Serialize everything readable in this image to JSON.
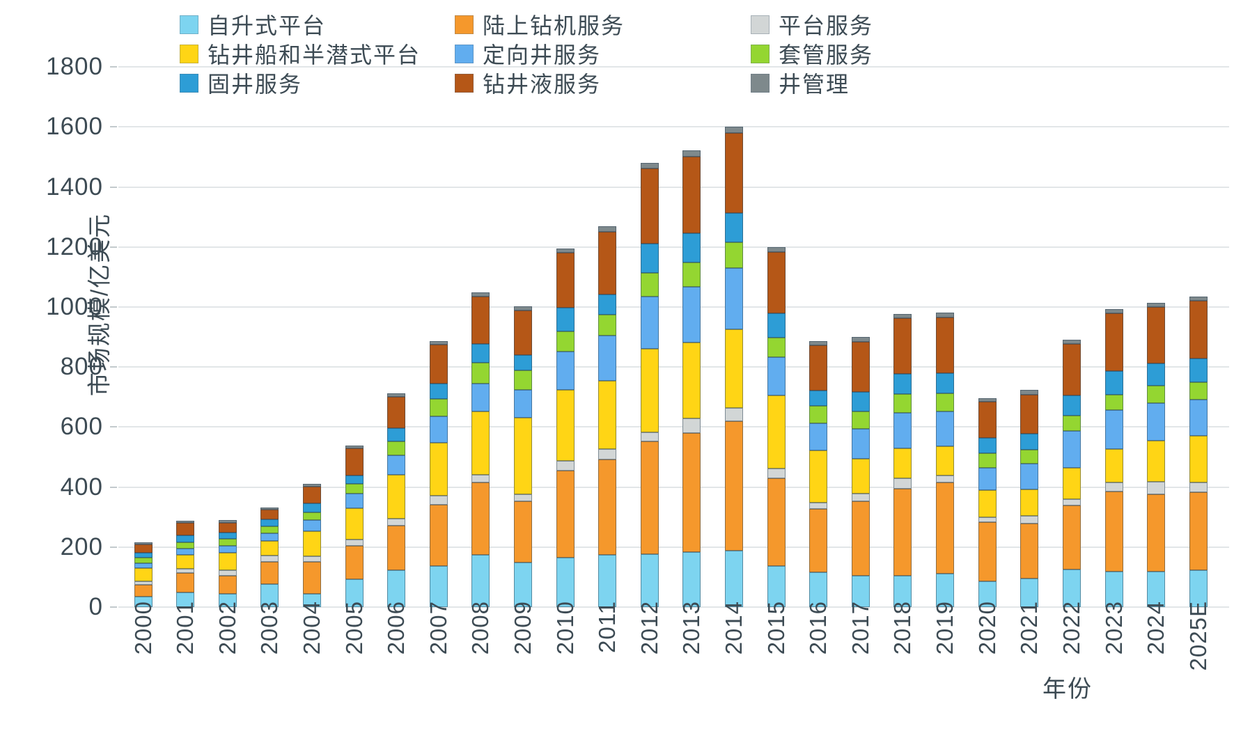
{
  "chart_data": {
    "type": "bar",
    "stacked": true,
    "xlabel": "年份",
    "ylabel": "市场规模/亿美元",
    "ylim": [
      0,
      1800
    ],
    "ytick_interval": 200,
    "ytick_labels": [
      "0",
      "200",
      "400",
      "600",
      "800",
      "1000",
      "1200",
      "1400",
      "1600",
      "1800"
    ],
    "grid": true,
    "legend_position": "top",
    "categories": [
      "2000",
      "2001",
      "2002",
      "2003",
      "2004",
      "2005",
      "2006",
      "2007",
      "2008",
      "2009",
      "2010",
      "2011",
      "2012",
      "2013",
      "2014",
      "2015",
      "2016",
      "2017",
      "2018",
      "2019",
      "2020",
      "2021",
      "2022",
      "2023",
      "2024",
      "2025E"
    ],
    "series": [
      {
        "name": "自升式平台",
        "color": "#7DD4F0",
        "values": [
          35,
          49,
          45,
          76,
          45,
          93,
          122,
          136,
          175,
          148,
          164,
          175,
          177,
          184,
          188,
          136,
          117,
          104,
          104,
          111,
          86,
          96,
          125,
          119,
          119,
          122
        ]
      },
      {
        "name": "陆上钻机服务",
        "color": "#F5982C",
        "values": [
          40,
          64,
          60,
          76,
          105,
          112,
          149,
          205,
          240,
          205,
          290,
          318,
          375,
          395,
          431,
          293,
          211,
          249,
          291,
          305,
          197,
          183,
          214,
          266,
          258,
          260
        ]
      },
      {
        "name": "平台服务",
        "color": "#D2D6D6",
        "values": [
          12,
          15,
          17,
          20,
          19,
          19,
          23,
          31,
          27,
          23,
          33,
          33,
          31,
          50,
          44,
          33,
          21,
          25,
          35,
          22,
          17,
          26,
          20,
          31,
          41,
          34
        ]
      },
      {
        "name": "钻井船和半潜式平台",
        "color": "#FFD515",
        "values": [
          42,
          45,
          58,
          49,
          83,
          105,
          147,
          175,
          209,
          255,
          236,
          228,
          279,
          252,
          263,
          244,
          173,
          116,
          99,
          99,
          90,
          87,
          106,
          111,
          137,
          155
        ]
      },
      {
        "name": "定向井服务",
        "color": "#61ADEF",
        "values": [
          18,
          23,
          25,
          26,
          39,
          50,
          66,
          89,
          93,
          92,
          129,
          150,
          173,
          186,
          205,
          126,
          90,
          99,
          119,
          115,
          75,
          87,
          122,
          129,
          124,
          121
        ]
      },
      {
        "name": "套管服务",
        "color": "#94D631",
        "values": [
          18,
          21,
          22,
          22,
          25,
          31,
          46,
          58,
          70,
          66,
          66,
          71,
          79,
          82,
          85,
          66,
          58,
          60,
          62,
          60,
          49,
          46,
          51,
          51,
          59,
          57
        ]
      },
      {
        "name": "固井服务",
        "color": "#2D9DD6",
        "values": [
          17,
          21,
          22,
          23,
          30,
          28,
          43,
          50,
          64,
          50,
          79,
          68,
          98,
          96,
          97,
          82,
          52,
          64,
          67,
          67,
          49,
          54,
          67,
          80,
          75,
          80
        ]
      },
      {
        "name": "钻井液服务",
        "color": "#B55717",
        "values": [
          28,
          43,
          33,
          32,
          56,
          91,
          105,
          130,
          156,
          150,
          184,
          208,
          250,
          257,
          267,
          203,
          150,
          168,
          185,
          186,
          121,
          130,
          172,
          192,
          188,
          191
        ]
      },
      {
        "name": "井管理",
        "color": "#7E898C",
        "values": [
          5,
          7,
          8,
          8,
          8,
          9,
          11,
          12,
          15,
          13,
          15,
          18,
          19,
          20,
          22,
          17,
          14,
          15,
          16,
          16,
          13,
          14,
          13,
          14,
          13,
          15
        ]
      }
    ]
  },
  "legend": {
    "items": [
      {
        "label": "自升式平台",
        "color": "#7DD4F0"
      },
      {
        "label": "陆上钻机服务",
        "color": "#F5982C"
      },
      {
        "label": "平台服务",
        "color": "#D2D6D6"
      },
      {
        "label": "钻井船和半潜式平台",
        "color": "#FFD515"
      },
      {
        "label": "定向井服务",
        "color": "#61ADEF"
      },
      {
        "label": "套管服务",
        "color": "#94D631"
      },
      {
        "label": "固井服务",
        "color": "#2D9DD6"
      },
      {
        "label": "钻井液服务",
        "color": "#B55717"
      },
      {
        "label": "井管理",
        "color": "#7E898C"
      }
    ]
  }
}
